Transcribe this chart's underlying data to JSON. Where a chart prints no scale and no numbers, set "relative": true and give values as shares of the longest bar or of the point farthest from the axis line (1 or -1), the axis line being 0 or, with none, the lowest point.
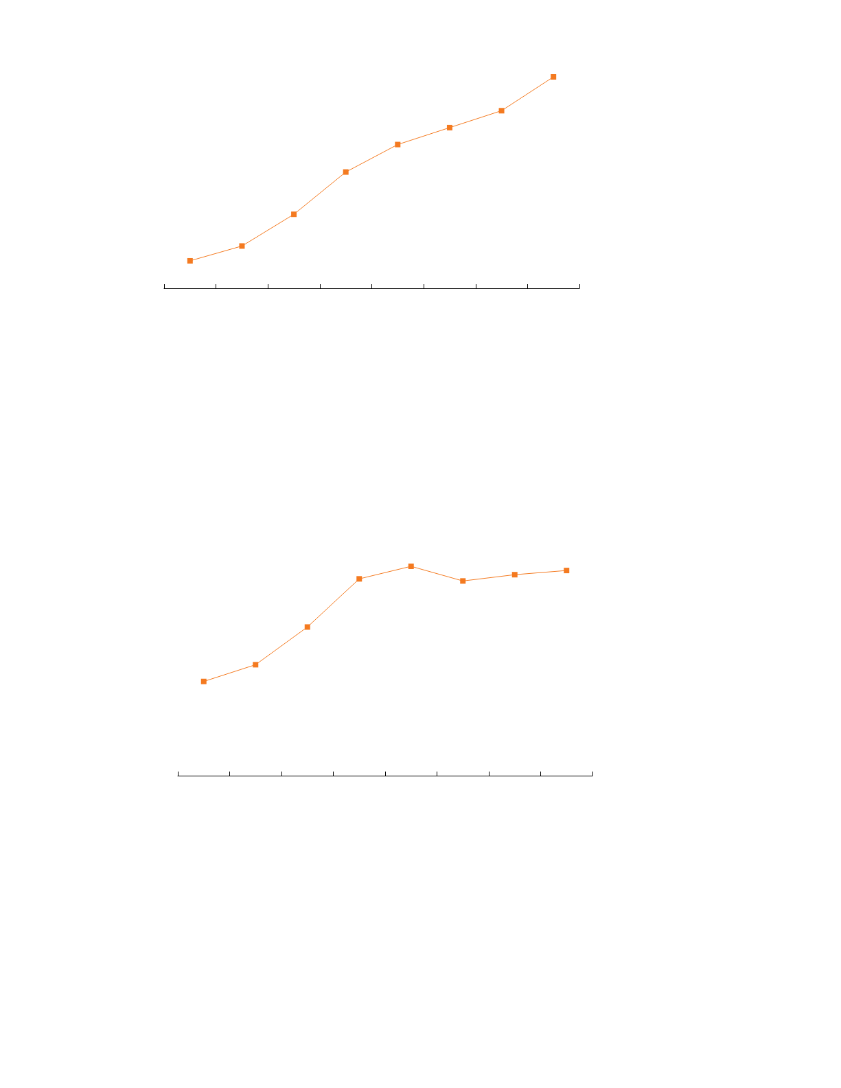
{
  "chart_data": [
    {
      "type": "line",
      "relative": true,
      "categories": [
        null,
        null,
        null,
        null,
        null,
        null,
        null,
        null
      ],
      "series": [
        {
          "color": "#f47a20",
          "values": [
            0.13,
            0.2,
            0.35,
            0.55,
            0.68,
            0.76,
            0.84,
            1
          ]
        }
      ],
      "marker": "square"
    },
    {
      "type": "line",
      "relative": true,
      "categories": [
        null,
        null,
        null,
        null,
        null,
        null,
        null,
        null
      ],
      "series": [
        {
          "color": "#f47a20",
          "values": [
            0.45,
            0.53,
            0.71,
            0.94,
            1,
            0.93,
            0.96,
            0.98
          ]
        }
      ],
      "marker": "square"
    }
  ]
}
